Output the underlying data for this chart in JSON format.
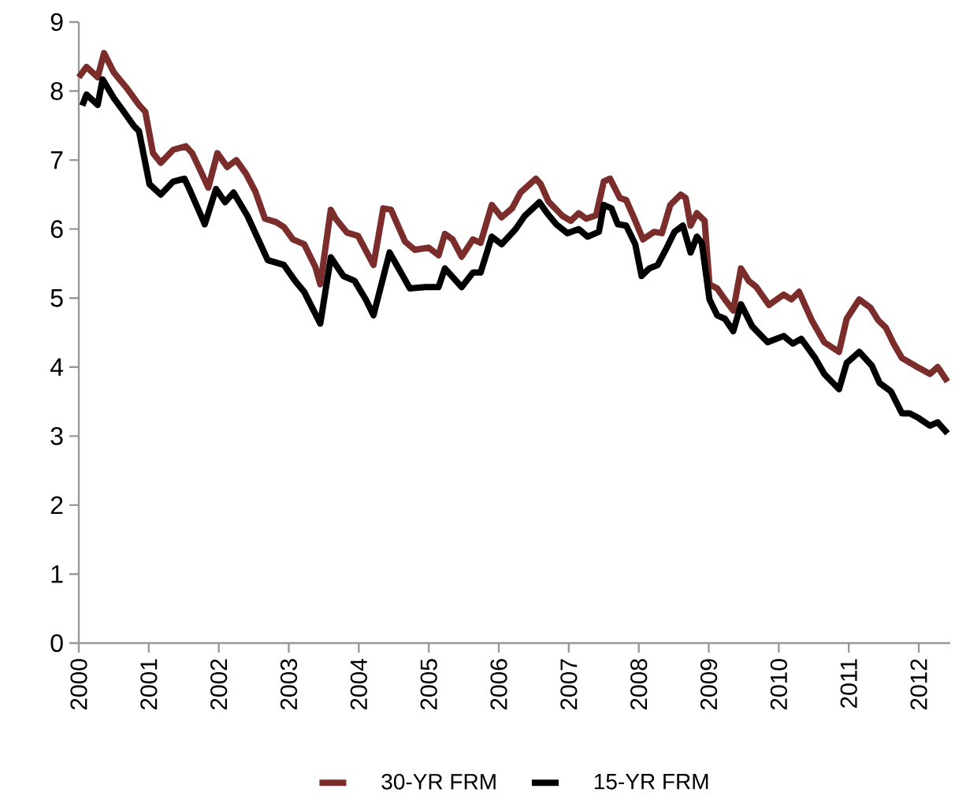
{
  "chart_data": {
    "type": "line",
    "xlim": [
      2000,
      2012.45
    ],
    "ylim": [
      0,
      9
    ],
    "xticks": [
      2000,
      2001,
      2002,
      2003,
      2004,
      2005,
      2006,
      2007,
      2008,
      2009,
      2010,
      2011,
      2012
    ],
    "yticks": [
      0,
      1,
      2,
      3,
      4,
      5,
      6,
      7,
      8,
      9
    ],
    "legend": "bottom",
    "grid": false,
    "series": [
      {
        "name": "30-YR FRM",
        "color": "#7b2d2b",
        "x": [
          2000.0,
          2000.11,
          2000.27,
          2000.36,
          2000.5,
          2000.68,
          2000.86,
          2000.95,
          2001.06,
          2001.17,
          2001.35,
          2001.53,
          2001.62,
          2001.76,
          2001.85,
          2001.98,
          2002.12,
          2002.25,
          2002.39,
          2002.52,
          2002.66,
          2002.82,
          2002.93,
          2003.06,
          2003.22,
          2003.38,
          2003.45,
          2003.6,
          2003.67,
          2003.83,
          2003.99,
          2004.21,
          2004.35,
          2004.46,
          2004.66,
          2004.8,
          2005.0,
          2005.14,
          2005.23,
          2005.34,
          2005.47,
          2005.63,
          2005.74,
          2005.9,
          2006.04,
          2006.19,
          2006.31,
          2006.53,
          2006.6,
          2006.71,
          2006.91,
          2007.03,
          2007.14,
          2007.25,
          2007.39,
          2007.5,
          2007.59,
          2007.73,
          2007.82,
          2007.95,
          2008.06,
          2008.22,
          2008.33,
          2008.45,
          2008.6,
          2008.67,
          2008.74,
          2008.83,
          2008.94,
          2009.01,
          2009.12,
          2009.23,
          2009.35,
          2009.46,
          2009.57,
          2009.68,
          2009.86,
          2010.07,
          2010.18,
          2010.29,
          2010.47,
          2010.65,
          2010.86,
          2010.97,
          2011.15,
          2011.31,
          2011.42,
          2011.53,
          2011.64,
          2011.76,
          2011.98,
          2012.16,
          2012.27,
          2012.41
        ],
        "values": [
          8.2,
          8.35,
          8.2,
          8.55,
          8.27,
          8.05,
          7.8,
          7.7,
          7.1,
          6.96,
          7.15,
          7.2,
          7.1,
          6.8,
          6.6,
          7.1,
          6.9,
          7.0,
          6.8,
          6.55,
          6.15,
          6.1,
          6.03,
          5.85,
          5.78,
          5.45,
          5.2,
          6.28,
          6.15,
          5.95,
          5.9,
          5.48,
          6.3,
          6.28,
          5.82,
          5.7,
          5.73,
          5.62,
          5.93,
          5.85,
          5.6,
          5.85,
          5.8,
          6.35,
          6.17,
          6.3,
          6.53,
          6.73,
          6.65,
          6.4,
          6.19,
          6.12,
          6.23,
          6.15,
          6.2,
          6.69,
          6.73,
          6.45,
          6.42,
          6.12,
          5.85,
          5.96,
          5.94,
          6.35,
          6.5,
          6.45,
          6.05,
          6.23,
          6.12,
          5.2,
          5.14,
          4.98,
          4.82,
          5.43,
          5.25,
          5.16,
          4.9,
          5.05,
          4.98,
          5.09,
          4.68,
          4.36,
          4.22,
          4.7,
          4.98,
          4.86,
          4.68,
          4.57,
          4.34,
          4.13,
          4.0,
          3.9,
          4.0,
          3.79
        ]
      },
      {
        "name": "15-YR FRM",
        "color": "#000000",
        "x": [
          2000.05,
          2000.11,
          2000.27,
          2000.34,
          2000.5,
          2000.63,
          2000.79,
          2000.86,
          2001.01,
          2001.17,
          2001.35,
          2001.51,
          2001.58,
          2001.8,
          2001.96,
          2002.09,
          2002.21,
          2002.41,
          2002.7,
          2002.93,
          2003.09,
          2003.22,
          2003.45,
          2003.6,
          2003.78,
          2003.94,
          2004.1,
          2004.21,
          2004.44,
          2004.73,
          2004.95,
          2005.14,
          2005.23,
          2005.47,
          2005.63,
          2005.74,
          2005.9,
          2006.04,
          2006.24,
          2006.37,
          2006.58,
          2006.69,
          2006.82,
          2006.98,
          2007.14,
          2007.27,
          2007.43,
          2007.5,
          2007.61,
          2007.7,
          2007.82,
          2007.95,
          2008.04,
          2008.15,
          2008.27,
          2008.4,
          2008.51,
          2008.63,
          2008.74,
          2008.83,
          2008.9,
          2009.01,
          2009.12,
          2009.23,
          2009.35,
          2009.46,
          2009.62,
          2009.84,
          2010.07,
          2010.2,
          2010.32,
          2010.52,
          2010.65,
          2010.86,
          2010.97,
          2011.15,
          2011.33,
          2011.44,
          2011.6,
          2011.76,
          2011.87,
          2012.0,
          2012.16,
          2012.27,
          2012.41
        ],
        "values": [
          7.79,
          7.95,
          7.8,
          8.17,
          7.9,
          7.72,
          7.49,
          7.42,
          6.65,
          6.5,
          6.69,
          6.73,
          6.58,
          6.07,
          6.58,
          6.39,
          6.53,
          6.19,
          5.55,
          5.48,
          5.25,
          5.09,
          4.63,
          5.59,
          5.32,
          5.25,
          4.98,
          4.75,
          5.66,
          5.14,
          5.16,
          5.16,
          5.43,
          5.16,
          5.37,
          5.37,
          5.89,
          5.78,
          6.0,
          6.19,
          6.39,
          6.23,
          6.07,
          5.94,
          6.0,
          5.89,
          5.96,
          6.35,
          6.3,
          6.07,
          6.05,
          5.78,
          5.32,
          5.43,
          5.48,
          5.73,
          5.96,
          6.05,
          5.66,
          5.89,
          5.8,
          4.98,
          4.75,
          4.7,
          4.52,
          4.91,
          4.59,
          4.36,
          4.45,
          4.34,
          4.41,
          4.13,
          3.9,
          3.68,
          4.06,
          4.22,
          4.02,
          3.77,
          3.65,
          3.33,
          3.33,
          3.26,
          3.15,
          3.2,
          3.04
        ]
      }
    ]
  }
}
